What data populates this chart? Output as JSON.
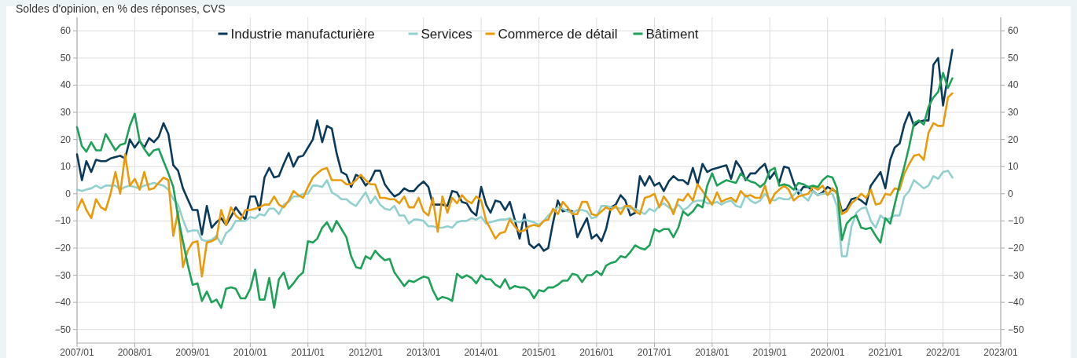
{
  "chart_data": {
    "type": "line",
    "subtitle": "Soldes d'opinion, en % des réponses, CVS",
    "x": [
      "2007-01",
      "2007-02",
      "2007-03",
      "2007-04",
      "2007-05",
      "2007-06",
      "2007-07",
      "2007-08",
      "2007-09",
      "2007-10",
      "2007-11",
      "2007-12",
      "2008-01",
      "2008-02",
      "2008-03",
      "2008-04",
      "2008-05",
      "2008-06",
      "2008-07",
      "2008-08",
      "2008-09",
      "2008-10",
      "2008-11",
      "2008-12",
      "2009-01",
      "2009-02",
      "2009-03",
      "2009-04",
      "2009-05",
      "2009-06",
      "2009-07",
      "2009-08",
      "2009-09",
      "2009-10",
      "2009-11",
      "2009-12",
      "2010-01",
      "2010-02",
      "2010-03",
      "2010-04",
      "2010-05",
      "2010-06",
      "2010-07",
      "2010-08",
      "2010-09",
      "2010-10",
      "2010-11",
      "2010-12",
      "2011-01",
      "2011-02",
      "2011-03",
      "2011-04",
      "2011-05",
      "2011-06",
      "2011-07",
      "2011-08",
      "2011-09",
      "2011-10",
      "2011-11",
      "2011-12",
      "2012-01",
      "2012-02",
      "2012-03",
      "2012-04",
      "2012-05",
      "2012-06",
      "2012-07",
      "2012-08",
      "2012-09",
      "2012-10",
      "2012-11",
      "2012-12",
      "2013-01",
      "2013-02",
      "2013-03",
      "2013-04",
      "2013-05",
      "2013-06",
      "2013-07",
      "2013-08",
      "2013-09",
      "2013-10",
      "2013-11",
      "2013-12",
      "2014-01",
      "2014-02",
      "2014-03",
      "2014-04",
      "2014-05",
      "2014-06",
      "2014-07",
      "2014-08",
      "2014-09",
      "2014-10",
      "2014-11",
      "2014-12",
      "2015-01",
      "2015-02",
      "2015-03",
      "2015-04",
      "2015-05",
      "2015-06",
      "2015-07",
      "2015-08",
      "2015-09",
      "2015-10",
      "2015-11",
      "2015-12",
      "2016-01",
      "2016-02",
      "2016-03",
      "2016-04",
      "2016-05",
      "2016-06",
      "2016-07",
      "2016-08",
      "2016-09",
      "2016-10",
      "2016-11",
      "2016-12",
      "2017-01",
      "2017-02",
      "2017-03",
      "2017-04",
      "2017-05",
      "2017-06",
      "2017-07",
      "2017-08",
      "2017-09",
      "2017-10",
      "2017-11",
      "2017-12",
      "2018-01",
      "2018-02",
      "2018-03",
      "2018-04",
      "2018-05",
      "2018-06",
      "2018-07",
      "2018-08",
      "2018-09",
      "2018-10",
      "2018-11",
      "2018-12",
      "2019-01",
      "2019-02",
      "2019-03",
      "2019-04",
      "2019-05",
      "2019-06",
      "2019-07",
      "2019-08",
      "2019-09",
      "2019-10",
      "2019-11",
      "2019-12",
      "2020-01",
      "2020-02",
      "2020-03",
      "2020-04",
      "2020-05",
      "2020-06",
      "2020-07",
      "2020-08",
      "2020-09",
      "2020-10",
      "2020-11",
      "2020-12",
      "2021-01",
      "2021-02",
      "2021-03",
      "2021-04",
      "2021-05",
      "2021-06",
      "2021-07",
      "2021-08",
      "2021-09",
      "2021-10",
      "2021-11",
      "2021-12",
      "2022-01",
      "2022-02",
      "2022-03"
    ],
    "series": [
      {
        "name": "Industrie manufacturière",
        "color": "#0c3a5b",
        "values": [
          14.5,
          5,
          12,
          8,
          12.5,
          12,
          12,
          13,
          13.5,
          14,
          13,
          20,
          17,
          19.5,
          17,
          20.5,
          19,
          21,
          26,
          22,
          10.5,
          8.5,
          2,
          -2,
          -6,
          -6,
          -15,
          -4.5,
          -12.5,
          -10.5,
          -9,
          -11.5,
          -8.5,
          -5,
          -7.5,
          -9.5,
          -1,
          -1,
          -6,
          6,
          9.5,
          6,
          6.5,
          11,
          15,
          10,
          13.5,
          14,
          17,
          20,
          27,
          19,
          25,
          24,
          15,
          8,
          7,
          2.5,
          7,
          6,
          3,
          5,
          8.5,
          8.5,
          3.5,
          1,
          -1,
          0,
          2,
          1,
          1,
          3,
          4.5,
          2.5,
          -4,
          -4,
          -4,
          -4.5,
          1,
          0.5,
          -3,
          -3.5,
          -6.5,
          -8,
          2.5,
          -4,
          -7,
          -2.5,
          -3,
          -6,
          -3,
          -9.5,
          -16.5,
          -7.5,
          -18.5,
          -20,
          -18.5,
          -21,
          -20,
          -10.5,
          -2.5,
          -6.5,
          -6,
          -6.5,
          -16,
          -12.5,
          -9,
          -16.5,
          -15,
          -17.5,
          -13,
          -5,
          -4,
          -0.5,
          -2.5,
          -8,
          -7,
          6.5,
          3,
          6.5,
          3,
          4,
          1,
          4.5,
          6.5,
          5,
          5,
          3.5,
          9.5,
          3.5,
          11,
          8,
          9,
          9.5,
          10,
          10.5,
          5.5,
          12,
          9.5,
          5,
          7.5,
          7.5,
          9.5,
          11,
          5.5,
          8,
          4,
          10,
          9.5,
          4,
          0,
          2.5,
          2.5,
          1,
          -0.5,
          0.5,
          2.5,
          1.5,
          0.5,
          -6.5,
          -5.5,
          -2,
          -1.5,
          -2.5,
          -4,
          3,
          5.5,
          8,
          2,
          12.5,
          17,
          18.5,
          25.5,
          30,
          25,
          26.5,
          27,
          27,
          47.5,
          50,
          32.5,
          43.5,
          53
        ]
      },
      {
        "name": "Services",
        "color": "#93d0d0",
        "values": [
          1.5,
          1,
          1.5,
          2,
          3,
          2,
          3,
          3,
          3,
          1.5,
          2.5,
          3,
          2.5,
          2,
          3,
          3.5,
          4,
          3.5,
          3,
          1.5,
          -2,
          -4,
          -9.5,
          -14,
          -13.5,
          -13.5,
          -17,
          -17.5,
          -17,
          -15.5,
          -18.5,
          -14.5,
          -13,
          -10,
          -10,
          -10,
          -8.5,
          -9,
          -7.5,
          -8,
          -5.5,
          -5.5,
          -7.5,
          -4,
          -3,
          -1,
          -1,
          0,
          0,
          3,
          3,
          2.5,
          5,
          0.5,
          -0.5,
          -2,
          -2,
          -3.5,
          -4.5,
          -2,
          0.5,
          -3.5,
          -1,
          -4,
          -5.5,
          -6,
          -4.5,
          -8,
          -8,
          -11,
          -9.5,
          -9.5,
          -10,
          -12,
          -12,
          -12.5,
          -12.5,
          -12,
          -12.5,
          -10.5,
          -10,
          -10,
          -9,
          -9.5,
          -8.5,
          -11,
          -10.5,
          -10,
          -9.5,
          -9.5,
          -9,
          -10,
          -10.5,
          -9.5,
          -10,
          -10.5,
          -11.5,
          -10,
          -8,
          -6.5,
          -5,
          -5.5,
          -6.5,
          -7,
          -6,
          -6,
          -6.5,
          -9,
          -8.5,
          -4.5,
          -4.5,
          -5,
          -5,
          -5.5,
          -4.5,
          -5.5,
          -5.5,
          -6.5,
          -7.5,
          -5.5,
          -6.5,
          -4.5,
          -3.5,
          -5,
          -6,
          -4,
          -6,
          -5,
          -3,
          -2.5,
          -2.5,
          -3.5,
          -3.5,
          -3,
          -4,
          -3,
          -2.5,
          -4.5,
          -5,
          -0.5,
          -2.5,
          -3.5,
          -2.5,
          0,
          -2,
          -2.5,
          -1.5,
          -2,
          -2,
          -0.5,
          1.5,
          -1,
          -2.5,
          1,
          -0.5,
          0,
          0,
          0,
          -4.5,
          -23,
          -23,
          -12,
          -7,
          -5.5,
          -5,
          -10,
          -12.5,
          -8,
          -9.5,
          -9,
          -8,
          -8,
          -1,
          1,
          5,
          3.5,
          2,
          3,
          6.5,
          5.5,
          8,
          8.5,
          6
        ]
      },
      {
        "name": "Commerce de détail",
        "color": "#e89b0d",
        "values": [
          -6,
          -2,
          -6,
          -9,
          -2,
          -5,
          -6,
          0,
          8,
          0,
          14.5,
          3,
          5.5,
          1.5,
          8,
          1.5,
          2,
          4,
          6,
          5,
          -15.5,
          -6.5,
          -27,
          -21,
          -18,
          -17.5,
          -30.5,
          -18,
          -17.5,
          -16.5,
          -6,
          -11.5,
          -5,
          -8,
          -9.5,
          -6,
          -6,
          -5.5,
          -5,
          -4,
          -4,
          -1,
          -4,
          -5,
          -2.5,
          1,
          -0.5,
          -1.5,
          2.5,
          6,
          7.5,
          9,
          9.5,
          5,
          5,
          5,
          3.5,
          3.5,
          5,
          7,
          5,
          3.5,
          3.5,
          -1.5,
          -1.5,
          -2,
          -2,
          -3.5,
          -1,
          -5,
          -5,
          -1.5,
          -6.5,
          -8,
          -1.5,
          -14,
          -1,
          -7,
          -1.5,
          -3.5,
          -0.5,
          -2.5,
          -3.5,
          -1,
          -2.5,
          -10,
          -13,
          -16.5,
          -14.5,
          -14,
          -9.5,
          -12,
          -14,
          -13.5,
          -12,
          -11.5,
          -12,
          -10,
          -9.5,
          -5.5,
          -7.5,
          -3,
          -5,
          -7.5,
          -7.5,
          -3,
          -3,
          -7.5,
          -8,
          -6.5,
          -5,
          -6,
          -4.5,
          -7.5,
          -4.5,
          -4.5,
          -6.5,
          -7.5,
          -1.5,
          -1,
          0,
          -5,
          -1,
          -3.5,
          -7.5,
          -2,
          -2.5,
          0,
          -2.5,
          3.5,
          1,
          -1.5,
          -4,
          0.5,
          -3,
          -2,
          -1.5,
          -3,
          1,
          -1,
          -0.5,
          -1.5,
          -1.5,
          3,
          -3.5,
          0,
          1.5,
          3,
          1.5,
          -2.5,
          -1,
          -0.5,
          0,
          2.5,
          1.5,
          3,
          -0.5,
          2,
          0,
          -7.5,
          -6.5,
          -3.5,
          -2,
          0,
          -1.5,
          1.5,
          -4,
          -3.5,
          0,
          -0.5,
          2,
          1.5,
          7.5,
          11,
          14,
          14.5,
          12.5,
          22.5,
          26,
          25,
          25,
          35.5,
          37
        ]
      },
      {
        "name": "Bâtiment",
        "color": "#1fa159",
        "values": [
          24.5,
          17.5,
          15.5,
          19,
          16,
          16,
          22,
          19,
          16,
          18,
          18.5,
          25,
          29.5,
          19.5,
          16.5,
          14,
          16,
          16.5,
          12,
          7.5,
          2.5,
          -8.5,
          -17.5,
          -26,
          -33.5,
          -33,
          -39.5,
          -36,
          -40,
          -39,
          -42,
          -35,
          -34.5,
          -35,
          -38.5,
          -38.5,
          -35,
          -28,
          -39,
          -39,
          -31,
          -42,
          -31.5,
          -29,
          -35,
          -33,
          -30.5,
          -29,
          -17.5,
          -18,
          -16.5,
          -12.5,
          -10.5,
          -14,
          -10,
          -13,
          -16,
          -23,
          -27,
          -27.5,
          -23,
          -24,
          -21,
          -23,
          -24.5,
          -24,
          -29,
          -31.5,
          -34,
          -32,
          -32.5,
          -31.5,
          -30.5,
          -31,
          -35.5,
          -39,
          -38,
          -38.5,
          -39.5,
          -29.5,
          -31,
          -30,
          -31,
          -33,
          -30,
          -31.5,
          -31.5,
          -33.5,
          -34.5,
          -31.5,
          -35,
          -34,
          -34.5,
          -34.5,
          -35.5,
          -38.5,
          -35.5,
          -36,
          -34.5,
          -34.5,
          -33.5,
          -32,
          -32,
          -29.5,
          -30,
          -32.5,
          -30,
          -30,
          -28.5,
          -30,
          -26.5,
          -25.5,
          -25,
          -23,
          -23.5,
          -21.5,
          -19,
          -20,
          -20.5,
          -19,
          -13,
          -14,
          -13,
          -13,
          -16,
          -12.5,
          -6.5,
          -8,
          -6.5,
          -4,
          -5,
          3,
          7.5,
          3,
          4,
          5,
          4.5,
          4,
          7.5,
          5.5,
          4.5,
          4,
          2.5,
          4,
          8.5,
          9.5,
          3,
          3.5,
          3,
          1.5,
          4,
          3.5,
          2.5,
          3,
          2.5,
          5,
          6.5,
          6,
          2,
          -17,
          -11,
          -9,
          -8,
          -12.5,
          -13,
          -12.5,
          -15.5,
          -18,
          -9,
          -11,
          -4,
          3.5,
          10,
          17.5,
          26,
          27,
          25.5,
          32,
          35.5,
          37.5,
          44.5,
          39,
          42.5
        ]
      }
    ],
    "xlim": [
      "2007-01",
      "2023-01"
    ],
    "xticks": [
      {
        "value": "2007-01",
        "label": "2007/01"
      },
      {
        "value": "2008-01",
        "label": "2008/01"
      },
      {
        "value": "2009-01",
        "label": "2009/01"
      },
      {
        "value": "2010-01",
        "label": "2010/01"
      },
      {
        "value": "2011-01",
        "label": "2011/01"
      },
      {
        "value": "2012-01",
        "label": "2012/01"
      },
      {
        "value": "2013-01",
        "label": "2013/01"
      },
      {
        "value": "2014-01",
        "label": "2014/01"
      },
      {
        "value": "2015-01",
        "label": "2015/01"
      },
      {
        "value": "2016-01",
        "label": "2016/01"
      },
      {
        "value": "2017-01",
        "label": "2017/01"
      },
      {
        "value": "2018-01",
        "label": "2018/01"
      },
      {
        "value": "2019-01",
        "label": "2019/01"
      },
      {
        "value": "2020-01",
        "label": "2020/01"
      },
      {
        "value": "2021-01",
        "label": "2021/01"
      },
      {
        "value": "2022-01",
        "label": "2022/01"
      },
      {
        "value": "2023-01",
        "label": "2023/01"
      }
    ],
    "ylim": [
      -55,
      65
    ],
    "yticks": [
      {
        "value": -50,
        "label": "−50"
      },
      {
        "value": -40,
        "label": "−40"
      },
      {
        "value": -30,
        "label": "−30"
      },
      {
        "value": -20,
        "label": "−20"
      },
      {
        "value": -10,
        "label": "−10"
      },
      0,
      10,
      20,
      30,
      40,
      50,
      60
    ],
    "y2lim": [
      -55,
      65
    ],
    "y2ticks": [
      {
        "value": -50,
        "label": "−50"
      },
      {
        "value": -40,
        "label": "−40"
      },
      {
        "value": -30,
        "label": "−30"
      },
      {
        "value": -20,
        "label": "−20"
      },
      {
        "value": -10,
        "label": "−10"
      },
      0,
      10,
      20,
      30,
      40,
      50,
      60
    ],
    "grid": true,
    "legend": "top"
  }
}
